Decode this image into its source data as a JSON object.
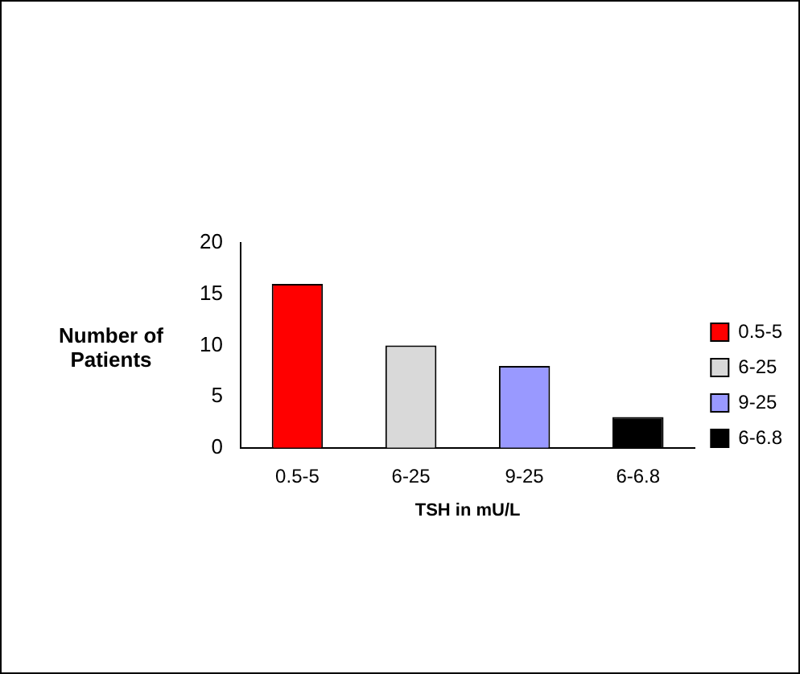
{
  "chart_data": {
    "type": "bar",
    "xlabel": "TSH in mU/L",
    "ylabel": "Number of Patients",
    "categories": [
      "0.5-5",
      "6-25",
      "9-25",
      "6-6.8"
    ],
    "series": [
      {
        "name": "0.5-5",
        "color": "#ff0000",
        "values": [
          16,
          null,
          null,
          null
        ]
      },
      {
        "name": "6-25",
        "color": "#d9d9d9",
        "values": [
          null,
          10,
          null,
          null
        ]
      },
      {
        "name": "9-25",
        "color": "#9999ff",
        "values": [
          null,
          null,
          8,
          null
        ]
      },
      {
        "name": "6-6.8",
        "color": "#000000",
        "values": [
          null,
          null,
          null,
          3
        ]
      }
    ],
    "stacked": true,
    "ylim": [
      0,
      20
    ],
    "yticks": [
      0,
      5,
      10,
      15,
      20
    ],
    "grid": false,
    "legend": "right"
  }
}
